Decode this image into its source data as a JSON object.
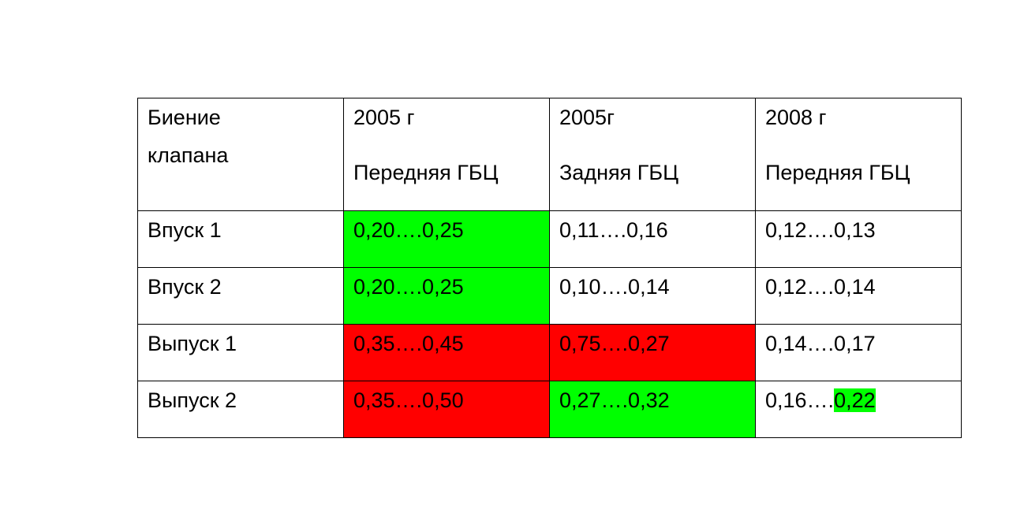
{
  "table": {
    "header": [
      {
        "text": "Биение клапана"
      },
      {
        "year": "2005 г",
        "label": "Передняя ГБЦ"
      },
      {
        "year": "2005г",
        "label": "Задняя ГБЦ"
      },
      {
        "year": "2008 г",
        "label": "Передняя ГБЦ"
      }
    ],
    "rows": [
      [
        "Впуск 1",
        "0,20….0,25",
        "0,11….0,16",
        "0,12….0,13"
      ],
      [
        "Впуск 2",
        "0,20….0,25",
        "0,10….0,14",
        "0,12….0,14"
      ],
      [
        "Выпуск 1",
        "0,35….0,45",
        "0,75….0,27",
        "0,14….0,17"
      ],
      [
        "Выпуск 2",
        "0,35….0,50",
        "0,27….0,32",
        [
          "0,16….",
          "0,22"
        ]
      ]
    ]
  }
}
